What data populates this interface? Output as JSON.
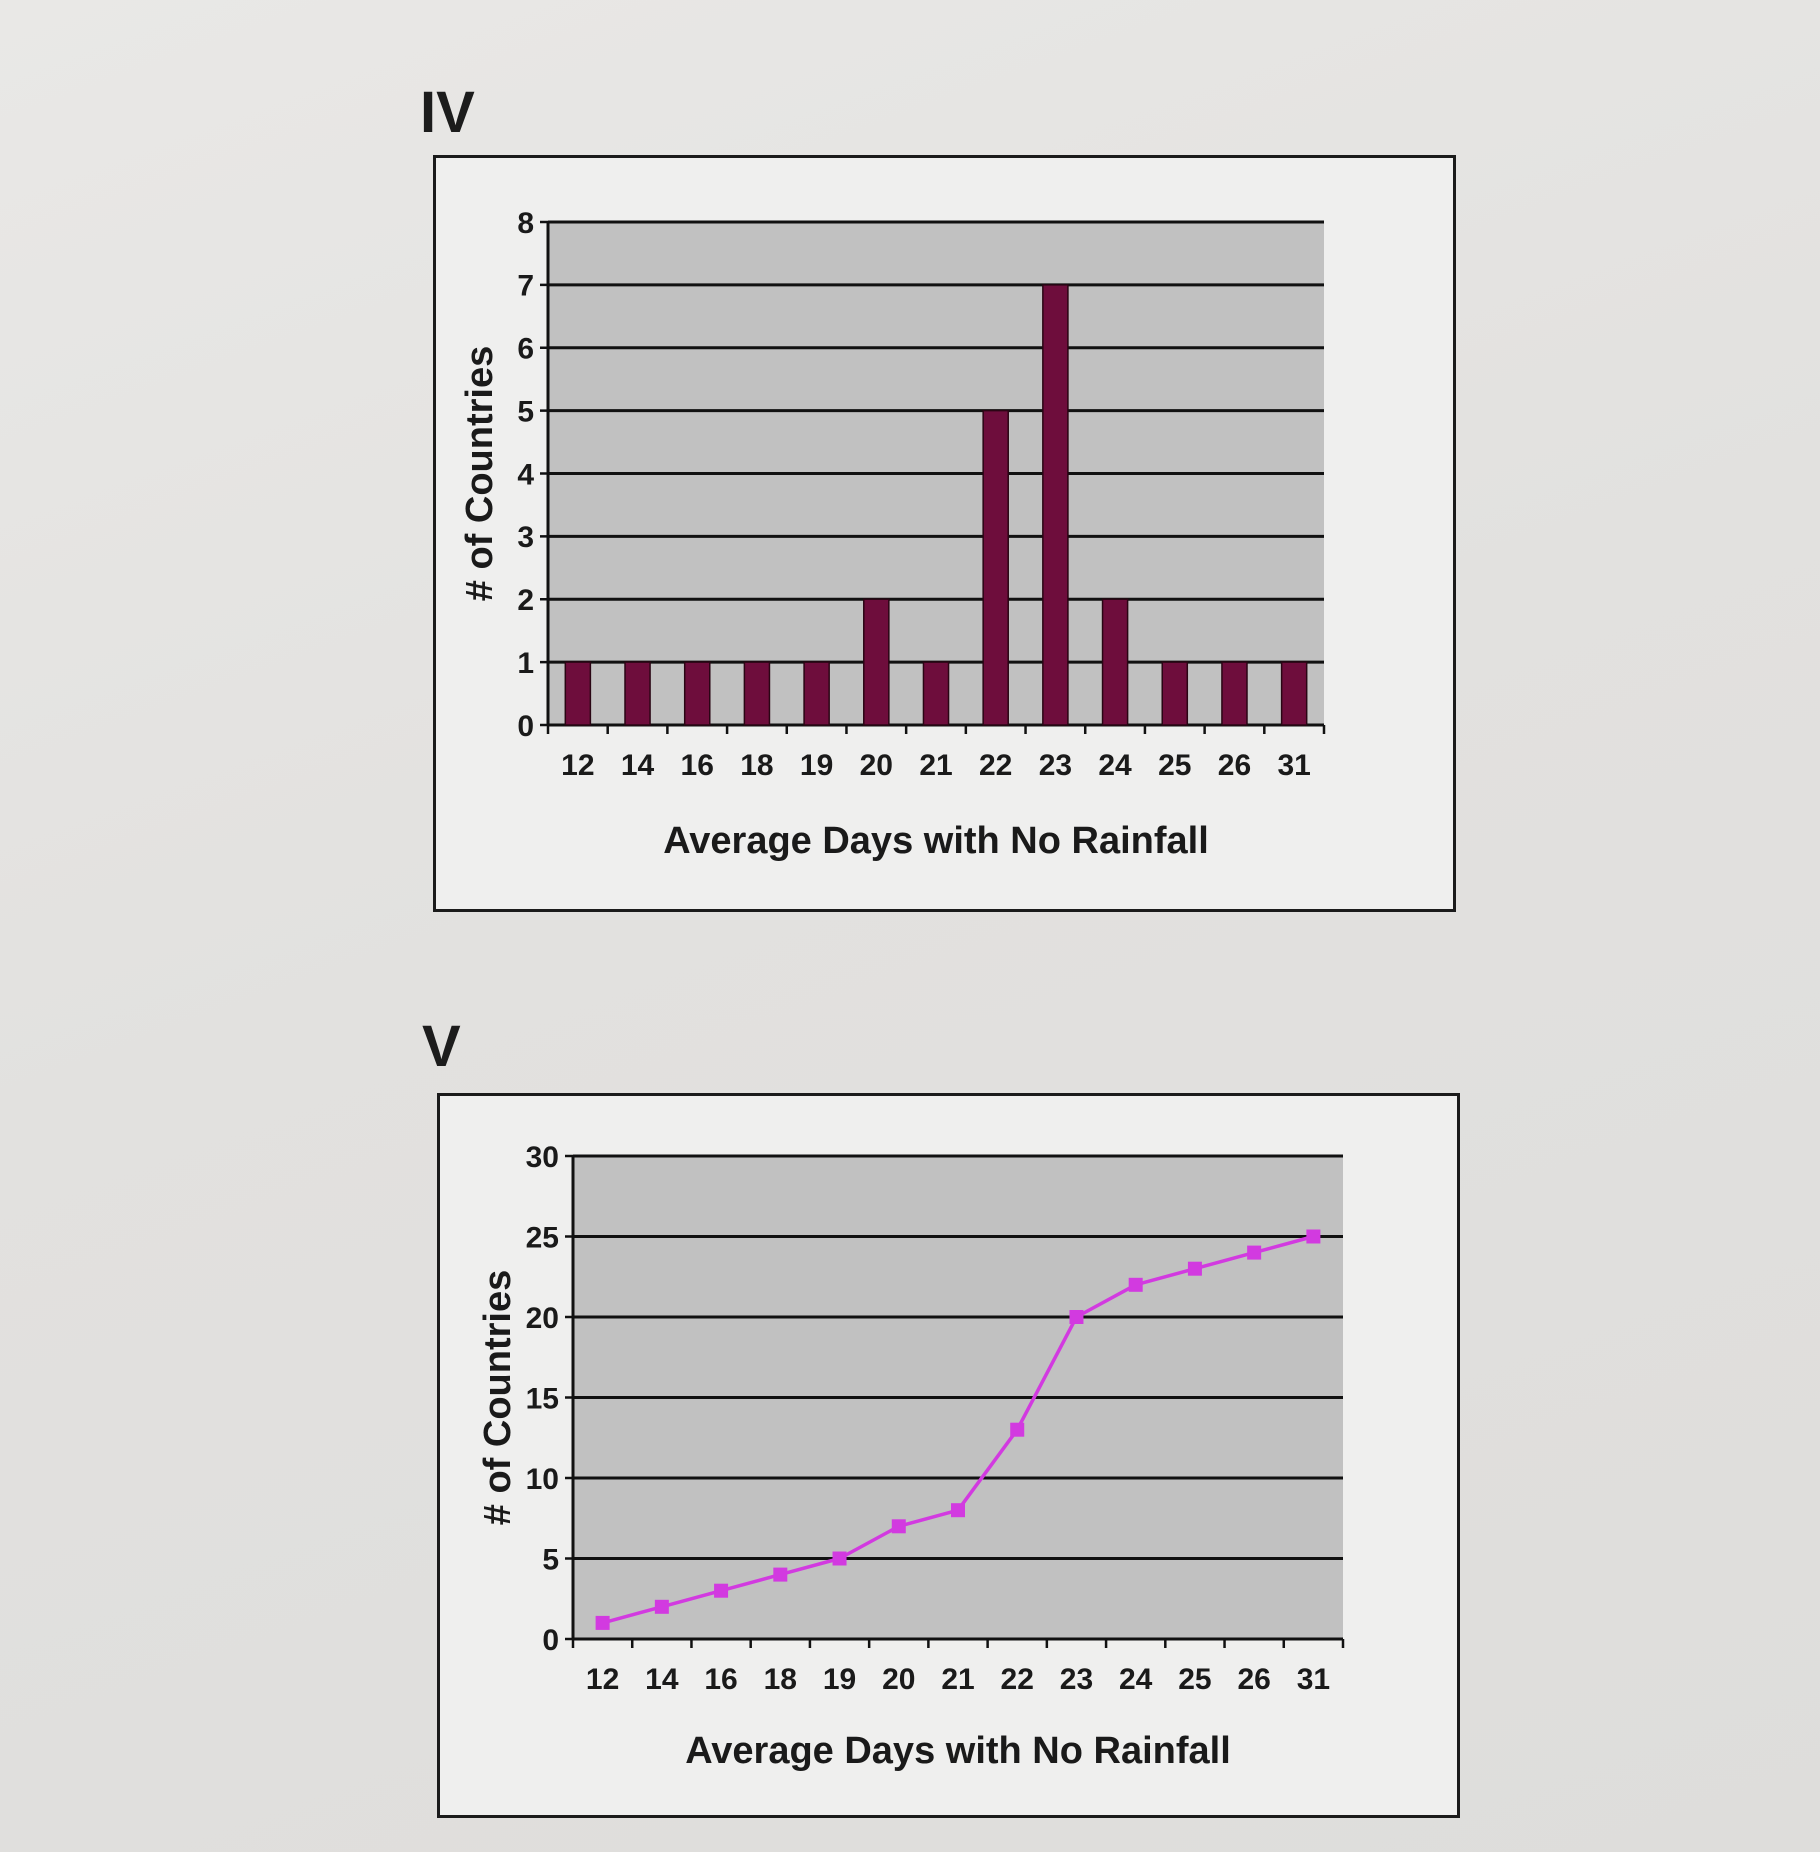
{
  "figures": [
    {
      "label": "IV"
    },
    {
      "label": "V"
    }
  ],
  "chart_data": [
    {
      "id": "iv",
      "type": "bar",
      "title": "",
      "xlabel": "Average Days with No Rainfall",
      "ylabel": "# of Countries",
      "categories": [
        "12",
        "14",
        "16",
        "18",
        "19",
        "20",
        "21",
        "22",
        "23",
        "24",
        "25",
        "26",
        "31"
      ],
      "values": [
        1,
        1,
        1,
        1,
        1,
        2,
        1,
        5,
        7,
        2,
        1,
        1,
        1
      ],
      "ylim": [
        0,
        8
      ],
      "yticks": [
        0,
        1,
        2,
        3,
        4,
        5,
        6,
        7,
        8
      ],
      "grid": true,
      "legend": "none",
      "colors": {
        "bar": "#6e0d3c",
        "plot_bg": "#c1c1c1",
        "grid": "#111111"
      }
    },
    {
      "id": "v",
      "type": "line",
      "title": "",
      "xlabel": "Average Days with No Rainfall",
      "ylabel": "# of Countries",
      "categories": [
        "12",
        "14",
        "16",
        "18",
        "19",
        "20",
        "21",
        "22",
        "23",
        "24",
        "25",
        "26",
        "31"
      ],
      "values": [
        1,
        2,
        3,
        4,
        5,
        7,
        8,
        13,
        20,
        22,
        23,
        24,
        25
      ],
      "ylim": [
        0,
        30
      ],
      "yticks": [
        0,
        5,
        10,
        15,
        20,
        25,
        30
      ],
      "grid": true,
      "legend": "none",
      "colors": {
        "line": "#d23ae0",
        "marker": "#d23ae0",
        "plot_bg": "#c1c1c1",
        "grid": "#111111"
      }
    }
  ]
}
